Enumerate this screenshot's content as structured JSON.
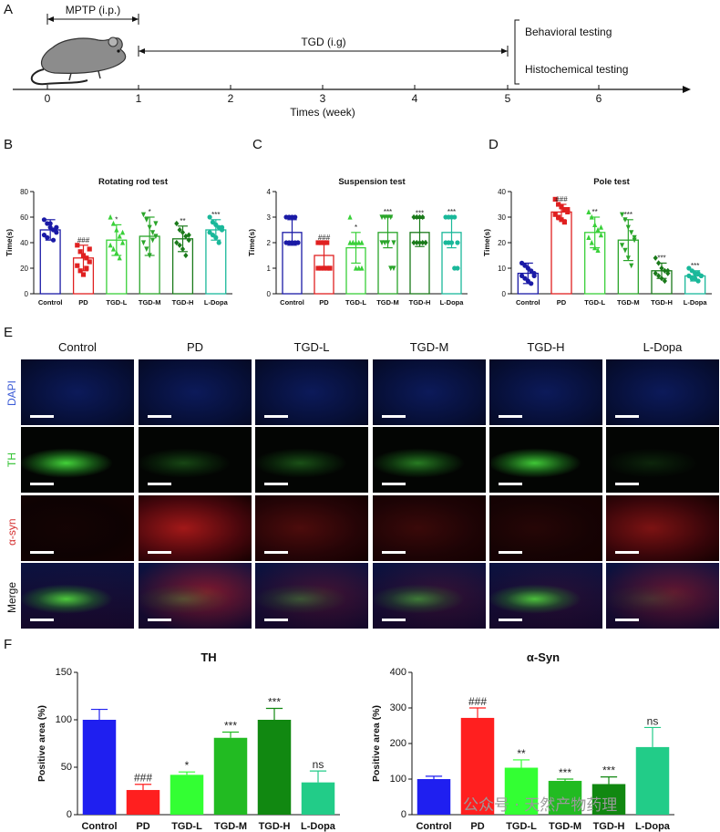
{
  "panels": {
    "A": "A",
    "B": "B",
    "C": "C",
    "D": "D",
    "E": "E",
    "F": "F"
  },
  "timeline": {
    "mptp_label": "MPTP (i.p.)",
    "tgd_label": "TGD (i.g)",
    "behavioral": "Behavioral testing",
    "histochemical": "Histochemical testing",
    "axis_title": "Times (week)",
    "ticks": [
      "0",
      "1",
      "2",
      "3",
      "4",
      "5",
      "6"
    ]
  },
  "image_grid": {
    "columns": [
      "Control",
      "PD",
      "TGD-L",
      "TGD-M",
      "TGD-H",
      "L-Dopa"
    ],
    "rows": [
      {
        "label": "DAPI",
        "color": "#3b5bd6"
      },
      {
        "label": "TH",
        "color": "#2fc22f"
      },
      {
        "label": "α-syn",
        "color": "#d43030"
      },
      {
        "label": "Merge",
        "color": "#111111"
      }
    ],
    "th_signal": [
      0.95,
      0.3,
      0.35,
      0.55,
      0.9,
      0.15
    ],
    "syn_signal": [
      0.05,
      0.8,
      0.35,
      0.25,
      0.15,
      0.6
    ]
  },
  "watermark": "公众号 · 天然产物药理",
  "chart_data": [
    {
      "id": "B",
      "type": "bar",
      "title": "Rotating rod test",
      "ylabel": "Time(s)",
      "ylim": [
        0,
        80
      ],
      "yticks": [
        0,
        20,
        40,
        60,
        80
      ],
      "categories": [
        "Control",
        "PD",
        "TGD-L",
        "TGD-M",
        "TGD-H",
        "L-Dopa"
      ],
      "values": [
        50,
        28,
        42,
        45,
        43,
        50
      ],
      "errors": [
        8,
        10,
        12,
        15,
        10,
        8
      ],
      "colors": [
        "#1a1aa6",
        "#e02020",
        "#39d039",
        "#2aa52a",
        "#1a7a1a",
        "#1ab89a"
      ],
      "annotations": [
        "",
        "###",
        "*",
        "*",
        "**",
        "***"
      ],
      "points": [
        [
          58,
          55,
          52,
          50,
          48,
          46,
          44,
          55,
          42,
          52
        ],
        [
          38,
          33,
          30,
          28,
          25,
          22,
          18,
          15,
          20,
          35
        ],
        [
          60,
          55,
          50,
          45,
          40,
          38,
          35,
          32,
          28,
          48
        ],
        [
          62,
          58,
          52,
          48,
          45,
          40,
          35,
          30,
          42,
          55
        ],
        [
          55,
          50,
          48,
          45,
          42,
          40,
          38,
          35,
          30,
          46
        ],
        [
          60,
          56,
          54,
          52,
          50,
          48,
          46,
          44,
          40,
          52
        ]
      ],
      "markers": [
        "circle",
        "square",
        "triangle",
        "triangle-down",
        "diamond",
        "circle"
      ]
    },
    {
      "id": "C",
      "type": "bar",
      "title": "Suspension test",
      "ylabel": "Time(s)",
      "ylim": [
        0,
        4
      ],
      "yticks": [
        0,
        1,
        2,
        3,
        4
      ],
      "categories": [
        "Control",
        "PD",
        "TGD-L",
        "TGD-M",
        "TGD-H",
        "L-Dopa"
      ],
      "values": [
        2.4,
        1.5,
        1.8,
        2.4,
        2.4,
        2.4
      ],
      "errors": [
        0.5,
        0.5,
        0.6,
        0.6,
        0.55,
        0.6
      ],
      "colors": [
        "#1a1aa6",
        "#e02020",
        "#39d039",
        "#2aa52a",
        "#1a7a1a",
        "#1ab89a"
      ],
      "annotations": [
        "",
        "###",
        "*",
        "***",
        "***",
        "***"
      ],
      "points": [
        [
          3,
          3,
          3,
          2,
          2,
          2,
          2,
          2,
          3,
          2
        ],
        [
          2,
          2,
          2,
          2,
          1,
          1,
          1,
          1,
          1,
          1
        ],
        [
          3,
          2,
          2,
          2,
          2,
          2,
          2,
          1,
          1,
          1
        ],
        [
          3,
          3,
          3,
          3,
          2,
          2,
          2,
          2,
          1,
          1
        ],
        [
          3,
          3,
          3,
          3,
          2,
          2,
          2,
          2,
          2,
          2
        ],
        [
          3,
          3,
          3,
          3,
          2,
          2,
          2,
          2,
          1,
          1
        ]
      ],
      "markers": [
        "circle",
        "square",
        "triangle",
        "triangle-down",
        "diamond",
        "circle"
      ]
    },
    {
      "id": "D",
      "type": "bar",
      "title": "Pole test",
      "ylabel": "Time(s)",
      "ylim": [
        0,
        40
      ],
      "yticks": [
        0,
        10,
        20,
        30,
        40
      ],
      "categories": [
        "Control",
        "PD",
        "TGD-L",
        "TGD-M",
        "TGD-H",
        "L-Dopa"
      ],
      "values": [
        8,
        32,
        24,
        21,
        9,
        7
      ],
      "errors": [
        4,
        3,
        6,
        8,
        3,
        2
      ],
      "colors": [
        "#1a1aa6",
        "#e02020",
        "#39d039",
        "#2aa52a",
        "#1a7a1a",
        "#1ab89a"
      ],
      "annotations": [
        "",
        "###",
        "**",
        "***",
        "***",
        "***"
      ],
      "points": [
        [
          12,
          11,
          10,
          9,
          8,
          7,
          6,
          5,
          4,
          7
        ],
        [
          37,
          35,
          34,
          33,
          32,
          31,
          30,
          29,
          28,
          33
        ],
        [
          32,
          30,
          27,
          25,
          23,
          22,
          20,
          18,
          17,
          26
        ],
        [
          31,
          29,
          26,
          24,
          21,
          19,
          17,
          14,
          11,
          22
        ],
        [
          14,
          12,
          10,
          9,
          8,
          8,
          7,
          6,
          5,
          9
        ],
        [
          10,
          9,
          8,
          8,
          7,
          7,
          6,
          6,
          5,
          7
        ]
      ],
      "markers": [
        "circle",
        "square",
        "triangle",
        "triangle-down",
        "diamond",
        "circle"
      ]
    },
    {
      "id": "F-TH",
      "type": "bar",
      "title": "TH",
      "ylabel": "Positive area (%)",
      "ylim": [
        0,
        150
      ],
      "yticks": [
        0,
        50,
        100,
        150
      ],
      "categories": [
        "Control",
        "PD",
        "TGD-L",
        "TGD-M",
        "TGD-H",
        "L-Dopa"
      ],
      "values": [
        100,
        26,
        42,
        81,
        100,
        34
      ],
      "errors": [
        11,
        6,
        3,
        6,
        12,
        12
      ],
      "colors": [
        "#1f1ff0",
        "#ff1f1f",
        "#33ff33",
        "#22bb22",
        "#118811",
        "#22cc88"
      ],
      "annotations": [
        "",
        "###",
        "*",
        "***",
        "***",
        "ns"
      ]
    },
    {
      "id": "F-Syn",
      "type": "bar",
      "title": "α-Syn",
      "ylabel": "Positive area (%)",
      "ylim": [
        0,
        400
      ],
      "yticks": [
        0,
        100,
        200,
        300,
        400
      ],
      "categories": [
        "Control",
        "PD",
        "TGD-L",
        "TGD-M",
        "TGD-H",
        "L-Dopa"
      ],
      "values": [
        100,
        272,
        132,
        95,
        86,
        190
      ],
      "errors": [
        8,
        28,
        22,
        5,
        20,
        55
      ],
      "colors": [
        "#1f1ff0",
        "#ff1f1f",
        "#33ff33",
        "#22bb22",
        "#118811",
        "#22cc88"
      ],
      "annotations": [
        "",
        "###",
        "**",
        "***",
        "***",
        "ns"
      ]
    }
  ]
}
